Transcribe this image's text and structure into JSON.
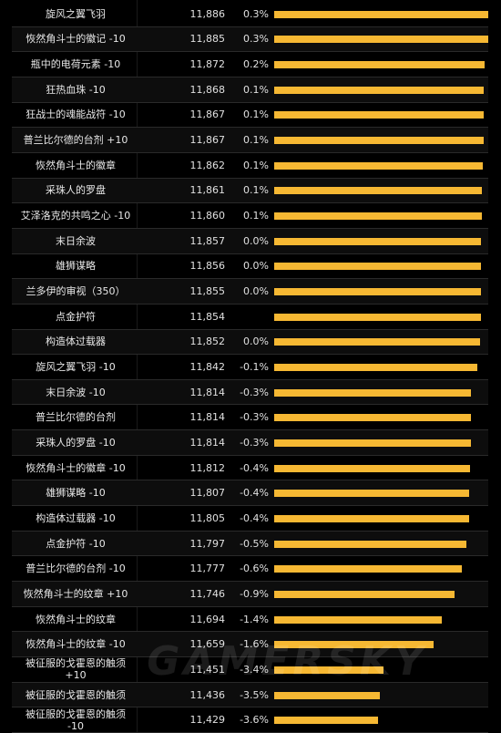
{
  "chart_data": {
    "type": "bar",
    "orientation": "horizontal",
    "columns": [
      "item",
      "score",
      "change"
    ],
    "rows": [
      {
        "item": "旋风之翼飞羽",
        "score": 11886,
        "score_label": "11,886",
        "change": "0.3%"
      },
      {
        "item": "恢然角斗士的徽记 -10",
        "score": 11885,
        "score_label": "11,885",
        "change": "0.3%"
      },
      {
        "item": "瓶中的电荷元素 -10",
        "score": 11872,
        "score_label": "11,872",
        "change": "0.2%"
      },
      {
        "item": "狂热血珠 -10",
        "score": 11868,
        "score_label": "11,868",
        "change": "0.1%"
      },
      {
        "item": "狂战士的魂能战符 -10",
        "score": 11867,
        "score_label": "11,867",
        "change": "0.1%"
      },
      {
        "item": "普兰比尔德的台剂 +10",
        "score": 11867,
        "score_label": "11,867",
        "change": "0.1%"
      },
      {
        "item": "恢然角斗士的徽章",
        "score": 11862,
        "score_label": "11,862",
        "change": "0.1%"
      },
      {
        "item": "采珠人的罗盘",
        "score": 11861,
        "score_label": "11,861",
        "change": "0.1%"
      },
      {
        "item": "艾泽洛克的共鸣之心 -10",
        "score": 11860,
        "score_label": "11,860",
        "change": "0.1%"
      },
      {
        "item": "末日余波",
        "score": 11857,
        "score_label": "11,857",
        "change": "0.0%"
      },
      {
        "item": "雄狮谋略",
        "score": 11856,
        "score_label": "11,856",
        "change": "0.0%"
      },
      {
        "item": "兰多伊的审视（350）",
        "score": 11855,
        "score_label": "11,855",
        "change": "0.0%"
      },
      {
        "item": "点金护符",
        "score": 11854,
        "score_label": "11,854",
        "change": ""
      },
      {
        "item": "构造体过载器",
        "score": 11852,
        "score_label": "11,852",
        "change": "0.0%"
      },
      {
        "item": "旋风之翼飞羽 -10",
        "score": 11842,
        "score_label": "11,842",
        "change": "-0.1%"
      },
      {
        "item": "末日余波 -10",
        "score": 11814,
        "score_label": "11,814",
        "change": "-0.3%"
      },
      {
        "item": "普兰比尔德的台剂",
        "score": 11814,
        "score_label": "11,814",
        "change": "-0.3%"
      },
      {
        "item": "采珠人的罗盘 -10",
        "score": 11814,
        "score_label": "11,814",
        "change": "-0.3%"
      },
      {
        "item": "恢然角斗士的徽章 -10",
        "score": 11812,
        "score_label": "11,812",
        "change": "-0.4%"
      },
      {
        "item": "雄狮谋略 -10",
        "score": 11807,
        "score_label": "11,807",
        "change": "-0.4%"
      },
      {
        "item": "构造体过载器 -10",
        "score": 11805,
        "score_label": "11,805",
        "change": "-0.4%"
      },
      {
        "item": "点金护符 -10",
        "score": 11797,
        "score_label": "11,797",
        "change": "-0.5%"
      },
      {
        "item": "普兰比尔德的台剂 -10",
        "score": 11777,
        "score_label": "11,777",
        "change": "-0.6%"
      },
      {
        "item": "恢然角斗士的纹章 +10",
        "score": 11746,
        "score_label": "11,746",
        "change": "-0.9%"
      },
      {
        "item": "恢然角斗士的纹章",
        "score": 11694,
        "score_label": "11,694",
        "change": "-1.4%"
      },
      {
        "item": "恢然角斗士的纹章 -10",
        "score": 11659,
        "score_label": "11,659",
        "change": "-1.6%"
      },
      {
        "item": "被征服的戈霍恩的触须\n+10",
        "score": 11451,
        "score_label": "11,451",
        "change": "-3.4%"
      },
      {
        "item": "被征服的戈霍恩的触须",
        "score": 11436,
        "score_label": "11,436",
        "change": "-3.5%"
      },
      {
        "item": "被征服的戈霍恩的触须\n-10",
        "score": 11429,
        "score_label": "11,429",
        "change": "-3.6%"
      }
    ],
    "bar_color": "#f6b833",
    "background": "#000000",
    "grid": false,
    "legend": "none"
  },
  "watermark": "GAMERSKY"
}
